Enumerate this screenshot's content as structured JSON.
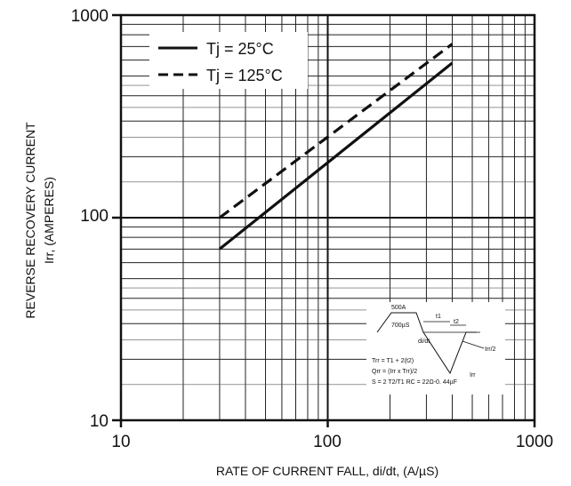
{
  "chart_data": {
    "type": "line",
    "xscale": "log",
    "yscale": "log",
    "xlim": [
      10,
      1000
    ],
    "ylim": [
      10,
      1000
    ],
    "grid": true,
    "legend_position": "top-left",
    "xlabel": "RATE OF CURRENT FALL, di/dt, (A/µS)",
    "ylabel_line1": "REVERSE RECOVERY CURRENT",
    "ylabel_line2": "Irr, (AMPERES)",
    "x_tick_labels": [
      "10",
      "100",
      "1000"
    ],
    "y_tick_labels": [
      "10",
      "100",
      "1000"
    ],
    "series": [
      {
        "name": "Tj = 25°C",
        "style": "solid",
        "color": "#111111",
        "x": [
          30,
          400
        ],
        "y": [
          70,
          580
        ]
      },
      {
        "name": "Tj = 125°C",
        "style": "dashed",
        "color": "#111111",
        "x": [
          30,
          400
        ],
        "y": [
          100,
          720
        ]
      }
    ],
    "inset": {
      "label_500A": "500A",
      "label_700us": "700µS",
      "label_t1": "t1",
      "label_t2": "t2",
      "label_didt": "di/dt",
      "label_irr2": "Irr/2",
      "label_irr": "Irr",
      "formula_1": "Trr = T1 + 2(t2)",
      "formula_2": "Qrr = (Irr x Trr)/2",
      "formula_3": "S = 2 T2/T1 RC = 22Ω-0.  44µF"
    }
  }
}
